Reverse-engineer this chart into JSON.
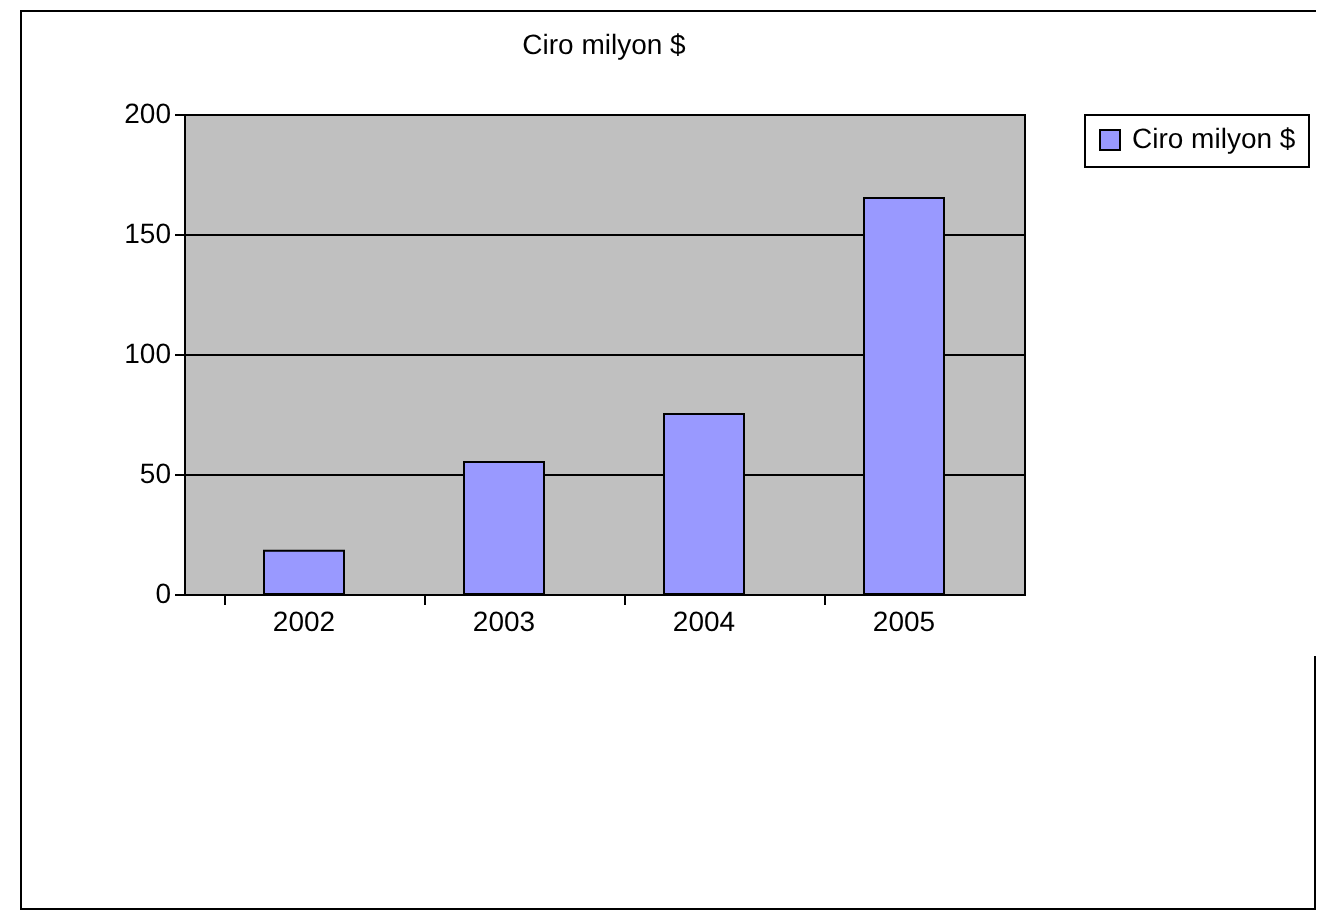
{
  "chart_data": {
    "type": "bar",
    "title": "Ciro\nmilyon $",
    "categories": [
      "2002",
      "2003",
      "2004",
      "2005"
    ],
    "series": [
      {
        "name": "Ciro milyon $",
        "color": "#9999ff",
        "values": [
          18,
          55,
          75,
          165
        ]
      }
    ],
    "ylim": [
      0,
      200
    ],
    "yticks": [
      0,
      50,
      100,
      150,
      200
    ],
    "grid": "y",
    "legend": "right"
  }
}
